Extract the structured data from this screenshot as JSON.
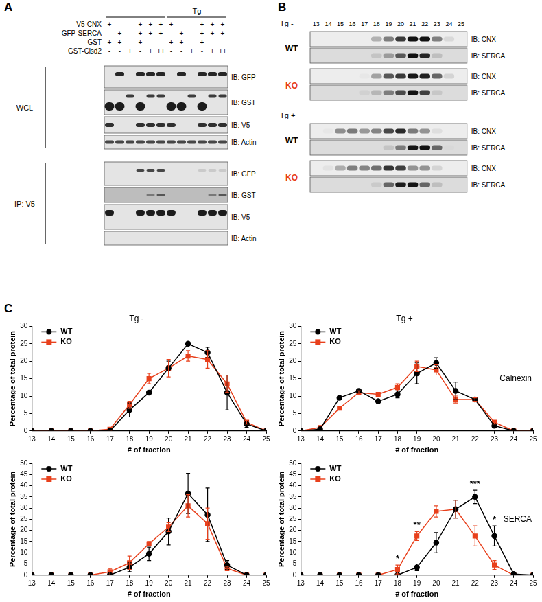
{
  "panels": {
    "A": {
      "label": "A",
      "groups": [
        "-",
        "Tg"
      ],
      "rows": [
        {
          "label": "V5-CNX",
          "marks": [
            "+",
            "-",
            "-",
            "+",
            "+",
            "+",
            "+",
            "-",
            "-",
            "+",
            "+",
            "+"
          ]
        },
        {
          "label": "GFP-SERCA",
          "marks": [
            "-",
            "+",
            "-",
            "+",
            "+",
            "+",
            "-",
            "+",
            "-",
            "+",
            "+",
            "+"
          ]
        },
        {
          "label": "GST",
          "marks": [
            "+",
            "+",
            "-",
            "+",
            "-",
            "-",
            "+",
            "+",
            "-",
            "+",
            "-",
            "-"
          ]
        },
        {
          "label": "GST-Cisd2",
          "marks": [
            "-",
            "-",
            "+",
            "-",
            "+",
            "++",
            "-",
            "-",
            "+",
            "-",
            "+",
            "++"
          ]
        }
      ],
      "blots": [
        {
          "group": "WCL",
          "ib": [
            "IB: GFP",
            "IB: GST",
            "IB: V5",
            "IB: Actin"
          ]
        },
        {
          "group": "IP: V5",
          "ib": [
            "IB: GFP",
            "IB: GST",
            "IB: V5",
            "IB: Actin"
          ]
        }
      ]
    },
    "B": {
      "label": "B",
      "fractions": [
        13,
        14,
        15,
        16,
        17,
        18,
        19,
        20,
        21,
        22,
        23,
        24,
        25
      ],
      "conditions": [
        {
          "label": "Tg -",
          "genotypes": [
            {
              "label": "WT",
              "ib": [
                "IB: CNX",
                "IB: SERCA"
              ]
            },
            {
              "label": "KO",
              "ib": [
                "IB: CNX",
                "IB: SERCA"
              ]
            }
          ]
        },
        {
          "label": "Tg +",
          "genotypes": [
            {
              "label": "WT",
              "ib": [
                "IB: CNX",
                "IB: SERCA"
              ]
            },
            {
              "label": "KO",
              "ib": [
                "IB: CNX",
                "IB: SERCA"
              ]
            }
          ]
        }
      ]
    },
    "C": {
      "label": "C"
    }
  },
  "chart_data": [
    {
      "type": "line",
      "title": "Tg -",
      "xlabel": "# of fraction",
      "ylabel": "Percentage of total protein",
      "x": [
        13,
        14,
        15,
        16,
        17,
        18,
        19,
        20,
        21,
        22,
        23,
        24,
        25
      ],
      "xlim": [
        13,
        25
      ],
      "xticks": [
        13,
        14,
        15,
        16,
        17,
        18,
        19,
        20,
        21,
        22,
        23,
        24,
        25
      ],
      "ylim": [
        0,
        30
      ],
      "yticks": [
        0,
        5,
        10,
        15,
        20,
        25,
        30
      ],
      "grid": false,
      "legend": "upper left",
      "series": [
        {
          "name": "WT",
          "color": "#000000",
          "marker": "circle",
          "values": [
            0,
            0,
            0,
            0,
            0,
            6,
            11,
            18,
            25,
            22.5,
            11,
            2,
            0
          ],
          "errors": [
            null,
            null,
            null,
            null,
            null,
            2,
            0.5,
            2,
            0.3,
            1.5,
            5,
            1,
            null
          ]
        },
        {
          "name": "KO",
          "color": "#e8401c",
          "marker": "square",
          "values": [
            0,
            0,
            0,
            0,
            0.5,
            7.5,
            15,
            18,
            21.5,
            20.5,
            13.5,
            2.5,
            0
          ],
          "errors": [
            null,
            null,
            null,
            null,
            null,
            1,
            1.5,
            2.5,
            1.5,
            2.5,
            2.5,
            0.5,
            null
          ]
        }
      ]
    },
    {
      "type": "line",
      "title": "Tg +",
      "subtitle": "Calnexin",
      "xlabel": "# of fraction",
      "ylabel": "Percentage of total protein",
      "x": [
        13,
        14,
        15,
        16,
        17,
        18,
        19,
        20,
        21,
        22,
        23,
        24,
        25
      ],
      "xlim": [
        13,
        25
      ],
      "xticks": [
        13,
        14,
        15,
        16,
        17,
        18,
        19,
        20,
        21,
        22,
        23,
        24,
        25
      ],
      "ylim": [
        0,
        30
      ],
      "yticks": [
        0,
        5,
        10,
        15,
        20,
        25,
        30
      ],
      "grid": false,
      "legend": "upper left",
      "series": [
        {
          "name": "WT",
          "color": "#000000",
          "marker": "circle",
          "values": [
            0,
            0.5,
            9.5,
            11.5,
            8.5,
            10.5,
            16.5,
            19.5,
            11.5,
            9,
            1.5,
            0,
            0
          ],
          "errors": [
            null,
            null,
            0.3,
            0.5,
            0.3,
            1,
            3,
            1.5,
            2.5,
            0.3,
            0.5,
            null,
            null
          ]
        },
        {
          "name": "KO",
          "color": "#e8401c",
          "marker": "square",
          "values": [
            0,
            1,
            6.5,
            11,
            10.5,
            12.5,
            18.5,
            17.5,
            9,
            9,
            2.5,
            0,
            0
          ],
          "errors": [
            null,
            null,
            0.3,
            0.5,
            0.5,
            1,
            1.5,
            1.5,
            1,
            0.5,
            0.5,
            null,
            null
          ]
        }
      ]
    },
    {
      "type": "line",
      "xlabel": "# of fraction",
      "ylabel": "Percentage of total protein",
      "x": [
        13,
        14,
        15,
        16,
        17,
        18,
        19,
        20,
        21,
        22,
        23,
        24,
        25
      ],
      "xlim": [
        13,
        25
      ],
      "xticks": [
        13,
        14,
        15,
        16,
        17,
        18,
        19,
        20,
        21,
        22,
        23,
        24,
        25
      ],
      "ylim": [
        0,
        50
      ],
      "yticks": [
        0,
        5,
        10,
        15,
        20,
        25,
        30,
        35,
        40,
        45,
        50
      ],
      "grid": false,
      "legend": "upper left",
      "series": [
        {
          "name": "WT",
          "color": "#000000",
          "marker": "circle",
          "values": [
            0,
            0,
            0,
            0,
            0,
            3.5,
            9.5,
            19.5,
            36.5,
            27,
            4.5,
            0,
            0
          ],
          "errors": [
            null,
            null,
            null,
            null,
            null,
            2,
            3,
            6,
            9,
            12,
            2,
            null,
            null
          ]
        },
        {
          "name": "KO",
          "color": "#e8401c",
          "marker": "square",
          "values": [
            0,
            0,
            0,
            0,
            1.5,
            5.5,
            14,
            21.5,
            31,
            23,
            3,
            0,
            0
          ],
          "errors": [
            null,
            null,
            null,
            null,
            1.5,
            3,
            1,
            2,
            5,
            7,
            1,
            null,
            null
          ]
        }
      ]
    },
    {
      "type": "line",
      "subtitle": "SERCA",
      "xlabel": "# of fraction",
      "ylabel": "Percentage of total protein",
      "x": [
        13,
        14,
        15,
        16,
        17,
        18,
        19,
        20,
        21,
        22,
        23,
        24,
        25
      ],
      "xlim": [
        13,
        25
      ],
      "xticks": [
        13,
        14,
        15,
        16,
        17,
        18,
        19,
        20,
        21,
        22,
        23,
        24,
        25
      ],
      "ylim": [
        0,
        50
      ],
      "yticks": [
        0,
        5,
        10,
        15,
        20,
        25,
        30,
        35,
        40,
        45,
        50
      ],
      "grid": false,
      "legend": "upper left",
      "annotations": [
        {
          "x": 18,
          "text": "*"
        },
        {
          "x": 19,
          "text": "**"
        },
        {
          "x": 22,
          "text": "***"
        },
        {
          "x": 23,
          "text": "*"
        }
      ],
      "series": [
        {
          "name": "WT",
          "color": "#000000",
          "marker": "circle",
          "values": [
            0,
            0,
            0,
            0,
            0,
            0,
            3.5,
            14.5,
            29.5,
            35,
            17.5,
            0.5,
            0
          ],
          "errors": [
            null,
            null,
            null,
            null,
            null,
            null,
            1.5,
            4.5,
            4,
            3,
            4.5,
            null,
            null
          ]
        },
        {
          "name": "KO",
          "color": "#e8401c",
          "marker": "square",
          "values": [
            0,
            0,
            0,
            0,
            0,
            2.5,
            17.5,
            28.5,
            29.5,
            17.5,
            4.5,
            0,
            0
          ],
          "errors": [
            null,
            null,
            null,
            null,
            null,
            2,
            2,
            2.5,
            4,
            4.5,
            2,
            null,
            null
          ]
        }
      ]
    }
  ]
}
